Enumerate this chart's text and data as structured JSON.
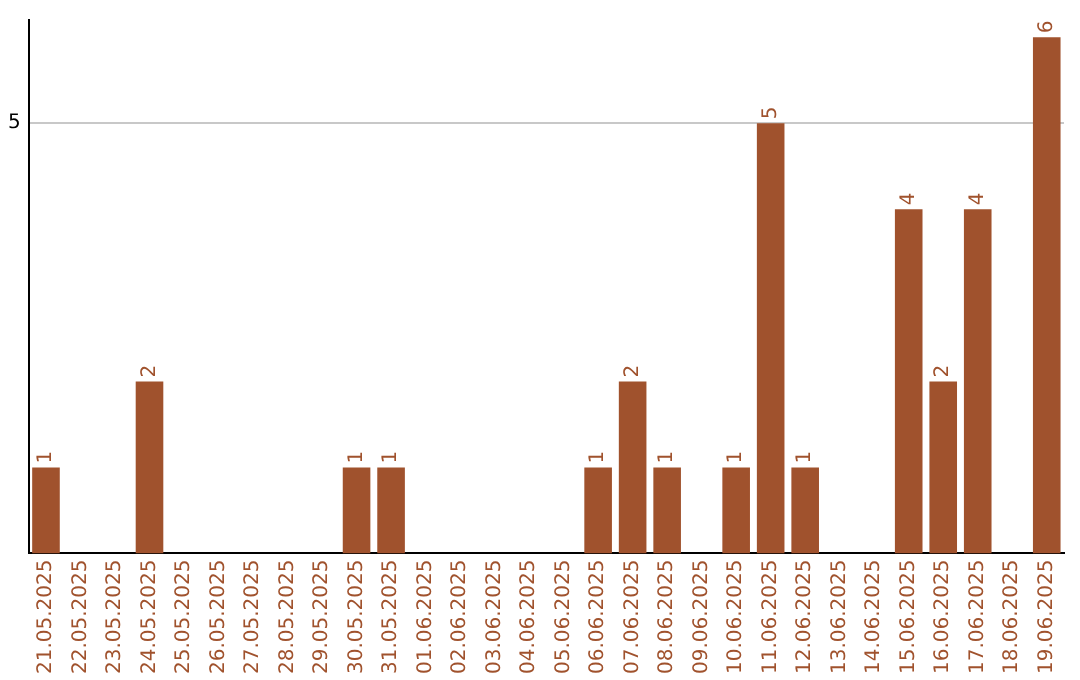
{
  "chart_data": {
    "type": "bar",
    "categories": [
      "21.05.2025",
      "22.05.2025",
      "23.05.2025",
      "24.05.2025",
      "25.05.2025",
      "26.05.2025",
      "27.05.2025",
      "28.05.2025",
      "29.05.2025",
      "30.05.2025",
      "31.05.2025",
      "01.06.2025",
      "02.06.2025",
      "03.06.2025",
      "04.06.2025",
      "05.06.2025",
      "06.06.2025",
      "07.06.2025",
      "08.06.2025",
      "09.06.2025",
      "10.06.2025",
      "11.06.2025",
      "12.06.2025",
      "13.06.2025",
      "14.06.2025",
      "15.06.2025",
      "16.06.2025",
      "17.06.2025",
      "18.06.2025",
      "19.06.2025"
    ],
    "values": [
      1,
      0,
      0,
      2,
      0,
      0,
      0,
      0,
      0,
      1,
      1,
      0,
      0,
      0,
      0,
      0,
      1,
      2,
      1,
      0,
      1,
      5,
      1,
      0,
      0,
      4,
      2,
      4,
      0,
      6
    ],
    "value_labels": [
      "1",
      null,
      null,
      "2",
      null,
      null,
      null,
      null,
      null,
      "1",
      "1",
      null,
      null,
      null,
      null,
      null,
      "1",
      "2",
      "1",
      null,
      "1",
      "5",
      "1",
      null,
      null,
      "4",
      "2",
      "4",
      null,
      "6"
    ],
    "color": "#a0522d",
    "ylim": [
      0,
      6.2
    ],
    "yticks": [
      5
    ],
    "grid": "y",
    "legend": false
  }
}
